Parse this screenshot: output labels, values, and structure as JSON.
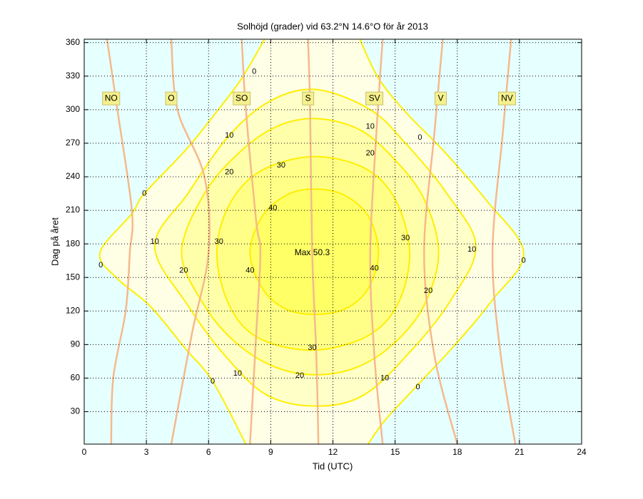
{
  "chart_data": {
    "type": "contour",
    "title": "Solhöjd (grader) vid 63.2°N 14.6°O för år 2013",
    "xlabel": "Tid (UTC)",
    "ylabel": "Dag på året",
    "xlim": [
      0,
      24
    ],
    "ylim": [
      1,
      363
    ],
    "xticks": [
      0,
      3,
      6,
      9,
      12,
      15,
      18,
      21,
      24
    ],
    "yticks": [
      30,
      60,
      90,
      120,
      150,
      180,
      210,
      240,
      270,
      300,
      330,
      360
    ],
    "grid": true,
    "background_color": "#e6ffff",
    "line_color": "#ffee00",
    "contours": [
      {
        "level": 0,
        "fill": "#ffffe6",
        "pieces": [
          {
            "x": [
              8.7,
              7.6,
              6.3,
              4.9,
              2.9,
              2.3,
              0.76,
              1.6,
              3.2,
              4.9,
              6.2,
              7.8
            ],
            "y": [
              363,
              328,
              296,
              264,
              225,
              207,
              172,
              149,
              124,
              86,
              57,
              1
            ]
          },
          {
            "x": [
              13.3,
              14.2,
              15.6,
              17.3,
              19.4,
              21.2,
              19.7,
              18.0,
              16.1,
              14.5,
              13.7
            ],
            "y": [
              363,
              328,
              296,
              264,
              219,
              172,
              130,
              92,
              54,
              22,
              1
            ]
          }
        ],
        "label_x": [
          8.2,
          2.9,
          0.8,
          6.2,
          16.2,
          16.1,
          21.2
        ],
        "label_y": [
          334,
          225,
          161,
          57,
          275,
          52,
          165
        ]
      },
      {
        "level": 10,
        "fill": "#ffffc8",
        "pieces": [
          {
            "x": [
              3.4,
              5.0,
              7.0,
              9.0,
              11.2,
              13.8,
              15.5,
              17.5,
              18.9,
              17.7,
              15.8,
              13.5,
              11.2,
              8.8,
              6.8,
              5.0
            ],
            "y": [
              178,
              225,
              277,
              308,
              318,
              300,
              270,
              225,
              178,
              130,
              85,
              45,
              35,
              45,
              80,
              125
            ]
          }
        ],
        "label_x": [
          3.4,
          7.0,
          13.8,
          18.7,
          7.4,
          14.5
        ],
        "label_y": [
          182,
          277,
          285,
          175,
          64,
          60
        ]
      },
      {
        "level": 20,
        "fill": "#ffffaa",
        "pieces": [
          {
            "x": [
              4.7,
              5.8,
              7.5,
              9.3,
              11.2,
              13.3,
              15.0,
              16.4,
              17.1,
              16.4,
              15.0,
              13.2,
              11.2,
              9.2,
              7.3,
              5.8
            ],
            "y": [
              172,
              225,
              262,
              285,
              292,
              282,
              255,
              220,
              172,
              125,
              92,
              70,
              63,
              70,
              92,
              125
            ]
          }
        ],
        "label_x": [
          7.0,
          4.8,
          13.8,
          16.6,
          10.4
        ],
        "label_y": [
          244,
          156,
          261,
          138,
          62
        ]
      },
      {
        "level": 30,
        "fill": "#ffff88",
        "pieces": [
          {
            "x": [
              6.4,
              7.0,
              8.5,
              11.0,
              13.5,
              15.0,
              15.7,
              15.1,
              13.6,
              11.0,
              8.4,
              7.0
            ],
            "y": [
              172,
              215,
              245,
              258,
              248,
              220,
              172,
              125,
              97,
              85,
              96,
              125
            ]
          }
        ],
        "label_x": [
          9.5,
          6.5,
          15.5,
          11.0
        ],
        "label_y": [
          250,
          182,
          185,
          87
        ]
      },
      {
        "level": 40,
        "fill": "#ffff66",
        "pieces": [
          {
            "x": [
              8.0,
              8.6,
              9.8,
              11.1,
              12.5,
              13.7,
              14.2,
              13.7,
              12.6,
              11.1,
              9.7,
              8.6
            ],
            "y": [
              172,
              205,
              224,
              229,
              224,
              205,
              172,
              140,
              122,
              117,
              122,
              140
            ]
          }
        ],
        "label_x": [
          9.1,
          8.0,
          14.0
        ],
        "label_y": [
          212,
          156,
          158
        ]
      }
    ],
    "azimuth_color": "#f5b98c",
    "azimuth_label_y": 310,
    "azimuth_lines": [
      {
        "label": "NO",
        "label_x": 1.3,
        "x": [
          1.1,
          1.6,
          2.3,
          2.2,
          2.0,
          1.4,
          1.3
        ],
        "y": [
          363,
          300,
          210,
          172,
          120,
          60,
          1
        ]
      },
      {
        "label": "O",
        "label_x": 4.2,
        "x": [
          4.2,
          4.5,
          5.8,
          6.0,
          5.2,
          4.2
        ],
        "y": [
          363,
          300,
          240,
          172,
          100,
          1
        ]
      },
      {
        "label": "SO",
        "label_x": 7.6,
        "x": [
          7.6,
          7.8,
          8.3,
          8.5,
          8.3,
          8.0
        ],
        "y": [
          363,
          300,
          200,
          172,
          100,
          1
        ]
      },
      {
        "label": "S",
        "label_x": 10.8,
        "x": [
          10.8,
          10.9,
          11.0,
          11.2,
          11.3
        ],
        "y": [
          363,
          300,
          172,
          80,
          1
        ]
      },
      {
        "label": "SV",
        "label_x": 14.0,
        "x": [
          14.4,
          14.1,
          13.8,
          14.0,
          14.4
        ],
        "y": [
          363,
          280,
          172,
          80,
          1
        ]
      },
      {
        "label": "V",
        "label_x": 17.2,
        "x": [
          17.3,
          16.9,
          16.4,
          16.9,
          18.0
        ],
        "y": [
          363,
          280,
          172,
          80,
          1
        ]
      },
      {
        "label": "NV",
        "label_x": 20.4,
        "x": [
          20.6,
          20.2,
          19.7,
          20.1,
          20.8
        ],
        "y": [
          363,
          280,
          172,
          80,
          1
        ]
      }
    ],
    "max": {
      "x": 11.0,
      "y": 172,
      "value": 50.3,
      "label": "Max 50.3"
    }
  }
}
